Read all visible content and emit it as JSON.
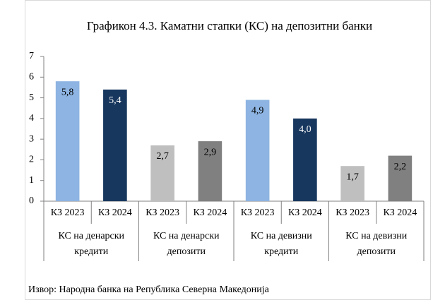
{
  "chart_data": {
    "type": "bar",
    "title": "Графикон 4.3. Каматни стапки (КС) на депозитни банки",
    "categories": [
      "КЗ 2023",
      "КЗ 2024",
      "КЗ 2023",
      "КЗ 2024",
      "КЗ 2023",
      "КЗ 2024",
      "КЗ 2023",
      "КЗ 2024"
    ],
    "groups": [
      [
        "КС на денарски",
        "кредити"
      ],
      [
        "КС на денарски",
        "депозити"
      ],
      [
        "КС на девизни",
        "кредити"
      ],
      [
        "КС на девизни",
        "депозити"
      ]
    ],
    "values": [
      5.8,
      5.4,
      2.7,
      2.9,
      4.9,
      4.0,
      1.7,
      2.2
    ],
    "value_labels": [
      "5,8",
      "5,4",
      "2,7",
      "2,9",
      "4,9",
      "4,0",
      "1,7",
      "2,2"
    ],
    "colors": [
      "#8db4e2",
      "#17375e",
      "#bfbfbf",
      "#808080",
      "#8db4e2",
      "#17375e",
      "#bfbfbf",
      "#808080"
    ],
    "value_label_colors": [
      "#000000",
      "#ffffff",
      "#000000",
      "#000000",
      "#000000",
      "#ffffff",
      "#000000",
      "#000000"
    ],
    "ylim": [
      0,
      7
    ],
    "yticks": [
      0,
      1,
      2,
      3,
      4,
      5,
      6,
      7
    ],
    "source": "Извор: Народна банка на Република Северна Македонија"
  }
}
